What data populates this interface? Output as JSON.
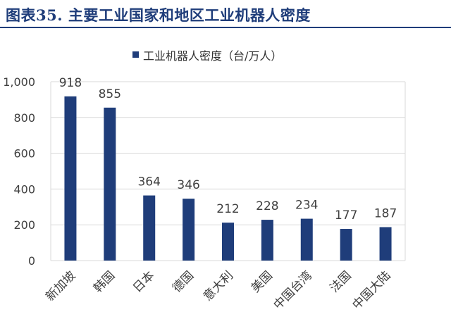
{
  "header": {
    "title": "图表35.  主要工业国家和地区工业机器人密度"
  },
  "chart_data": {
    "type": "bar",
    "legend": "工业机器人密度（台/万人）",
    "legend_position": "top",
    "categories": [
      "新加坡",
      "韩国",
      "日本",
      "德国",
      "意大利",
      "美国",
      "中国台湾",
      "法国",
      "中国大陆"
    ],
    "series": [
      {
        "name": "工业机器人密度（台/万人）",
        "values": [
          918,
          855,
          364,
          346,
          212,
          228,
          234,
          177,
          187
        ]
      }
    ],
    "ylim": [
      0,
      1000
    ],
    "yticks": [
      "0",
      "200",
      "400",
      "600",
      "800",
      "1,000"
    ],
    "grid": true,
    "bar_color": "#1f3d7a",
    "grid_color": "#d9d9d9"
  }
}
